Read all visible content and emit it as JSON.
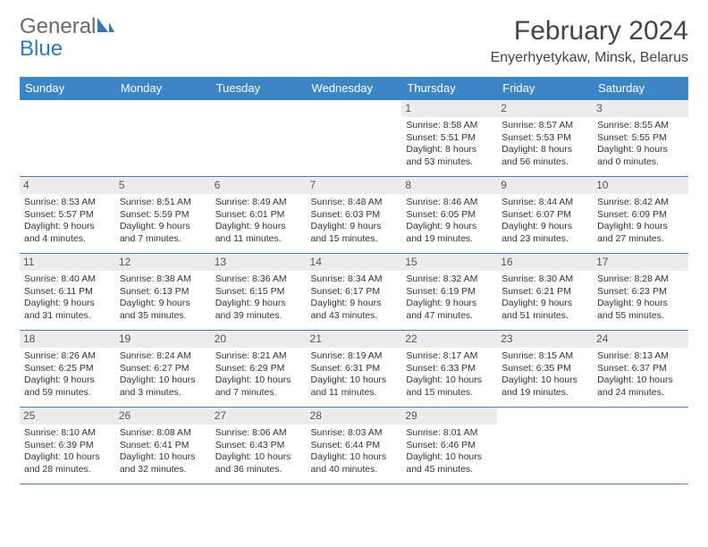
{
  "brand": {
    "word1": "General",
    "word2": "Blue"
  },
  "title": "February 2024",
  "location": "Enyerhyetykaw, Minsk, Belarus",
  "colors": {
    "header_bg": "#3d86c6",
    "header_text": "#ffffff",
    "border": "#3d86c6",
    "daynum_bg": "#ececec",
    "text": "#333333",
    "logo_gray": "#6a6a6a",
    "logo_blue": "#2f78bd"
  },
  "typography": {
    "title_fontsize": 30,
    "location_fontsize": 16,
    "header_fontsize": 13,
    "cell_fontsize": 10.5,
    "daynum_fontsize": 12
  },
  "day_headers": [
    "Sunday",
    "Monday",
    "Tuesday",
    "Wednesday",
    "Thursday",
    "Friday",
    "Saturday"
  ],
  "weeks": [
    [
      {
        "n": "",
        "sr": "",
        "ss": "",
        "dl": ""
      },
      {
        "n": "",
        "sr": "",
        "ss": "",
        "dl": ""
      },
      {
        "n": "",
        "sr": "",
        "ss": "",
        "dl": ""
      },
      {
        "n": "",
        "sr": "",
        "ss": "",
        "dl": ""
      },
      {
        "n": "1",
        "sr": "Sunrise: 8:58 AM",
        "ss": "Sunset: 5:51 PM",
        "dl": "Daylight: 8 hours and 53 minutes."
      },
      {
        "n": "2",
        "sr": "Sunrise: 8:57 AM",
        "ss": "Sunset: 5:53 PM",
        "dl": "Daylight: 8 hours and 56 minutes."
      },
      {
        "n": "3",
        "sr": "Sunrise: 8:55 AM",
        "ss": "Sunset: 5:55 PM",
        "dl": "Daylight: 9 hours and 0 minutes."
      }
    ],
    [
      {
        "n": "4",
        "sr": "Sunrise: 8:53 AM",
        "ss": "Sunset: 5:57 PM",
        "dl": "Daylight: 9 hours and 4 minutes."
      },
      {
        "n": "5",
        "sr": "Sunrise: 8:51 AM",
        "ss": "Sunset: 5:59 PM",
        "dl": "Daylight: 9 hours and 7 minutes."
      },
      {
        "n": "6",
        "sr": "Sunrise: 8:49 AM",
        "ss": "Sunset: 6:01 PM",
        "dl": "Daylight: 9 hours and 11 minutes."
      },
      {
        "n": "7",
        "sr": "Sunrise: 8:48 AM",
        "ss": "Sunset: 6:03 PM",
        "dl": "Daylight: 9 hours and 15 minutes."
      },
      {
        "n": "8",
        "sr": "Sunrise: 8:46 AM",
        "ss": "Sunset: 6:05 PM",
        "dl": "Daylight: 9 hours and 19 minutes."
      },
      {
        "n": "9",
        "sr": "Sunrise: 8:44 AM",
        "ss": "Sunset: 6:07 PM",
        "dl": "Daylight: 9 hours and 23 minutes."
      },
      {
        "n": "10",
        "sr": "Sunrise: 8:42 AM",
        "ss": "Sunset: 6:09 PM",
        "dl": "Daylight: 9 hours and 27 minutes."
      }
    ],
    [
      {
        "n": "11",
        "sr": "Sunrise: 8:40 AM",
        "ss": "Sunset: 6:11 PM",
        "dl": "Daylight: 9 hours and 31 minutes."
      },
      {
        "n": "12",
        "sr": "Sunrise: 8:38 AM",
        "ss": "Sunset: 6:13 PM",
        "dl": "Daylight: 9 hours and 35 minutes."
      },
      {
        "n": "13",
        "sr": "Sunrise: 8:36 AM",
        "ss": "Sunset: 6:15 PM",
        "dl": "Daylight: 9 hours and 39 minutes."
      },
      {
        "n": "14",
        "sr": "Sunrise: 8:34 AM",
        "ss": "Sunset: 6:17 PM",
        "dl": "Daylight: 9 hours and 43 minutes."
      },
      {
        "n": "15",
        "sr": "Sunrise: 8:32 AM",
        "ss": "Sunset: 6:19 PM",
        "dl": "Daylight: 9 hours and 47 minutes."
      },
      {
        "n": "16",
        "sr": "Sunrise: 8:30 AM",
        "ss": "Sunset: 6:21 PM",
        "dl": "Daylight: 9 hours and 51 minutes."
      },
      {
        "n": "17",
        "sr": "Sunrise: 8:28 AM",
        "ss": "Sunset: 6:23 PM",
        "dl": "Daylight: 9 hours and 55 minutes."
      }
    ],
    [
      {
        "n": "18",
        "sr": "Sunrise: 8:26 AM",
        "ss": "Sunset: 6:25 PM",
        "dl": "Daylight: 9 hours and 59 minutes."
      },
      {
        "n": "19",
        "sr": "Sunrise: 8:24 AM",
        "ss": "Sunset: 6:27 PM",
        "dl": "Daylight: 10 hours and 3 minutes."
      },
      {
        "n": "20",
        "sr": "Sunrise: 8:21 AM",
        "ss": "Sunset: 6:29 PM",
        "dl": "Daylight: 10 hours and 7 minutes."
      },
      {
        "n": "21",
        "sr": "Sunrise: 8:19 AM",
        "ss": "Sunset: 6:31 PM",
        "dl": "Daylight: 10 hours and 11 minutes."
      },
      {
        "n": "22",
        "sr": "Sunrise: 8:17 AM",
        "ss": "Sunset: 6:33 PM",
        "dl": "Daylight: 10 hours and 15 minutes."
      },
      {
        "n": "23",
        "sr": "Sunrise: 8:15 AM",
        "ss": "Sunset: 6:35 PM",
        "dl": "Daylight: 10 hours and 19 minutes."
      },
      {
        "n": "24",
        "sr": "Sunrise: 8:13 AM",
        "ss": "Sunset: 6:37 PM",
        "dl": "Daylight: 10 hours and 24 minutes."
      }
    ],
    [
      {
        "n": "25",
        "sr": "Sunrise: 8:10 AM",
        "ss": "Sunset: 6:39 PM",
        "dl": "Daylight: 10 hours and 28 minutes."
      },
      {
        "n": "26",
        "sr": "Sunrise: 8:08 AM",
        "ss": "Sunset: 6:41 PM",
        "dl": "Daylight: 10 hours and 32 minutes."
      },
      {
        "n": "27",
        "sr": "Sunrise: 8:06 AM",
        "ss": "Sunset: 6:43 PM",
        "dl": "Daylight: 10 hours and 36 minutes."
      },
      {
        "n": "28",
        "sr": "Sunrise: 8:03 AM",
        "ss": "Sunset: 6:44 PM",
        "dl": "Daylight: 10 hours and 40 minutes."
      },
      {
        "n": "29",
        "sr": "Sunrise: 8:01 AM",
        "ss": "Sunset: 6:46 PM",
        "dl": "Daylight: 10 hours and 45 minutes."
      },
      {
        "n": "",
        "sr": "",
        "ss": "",
        "dl": ""
      },
      {
        "n": "",
        "sr": "",
        "ss": "",
        "dl": ""
      }
    ]
  ]
}
